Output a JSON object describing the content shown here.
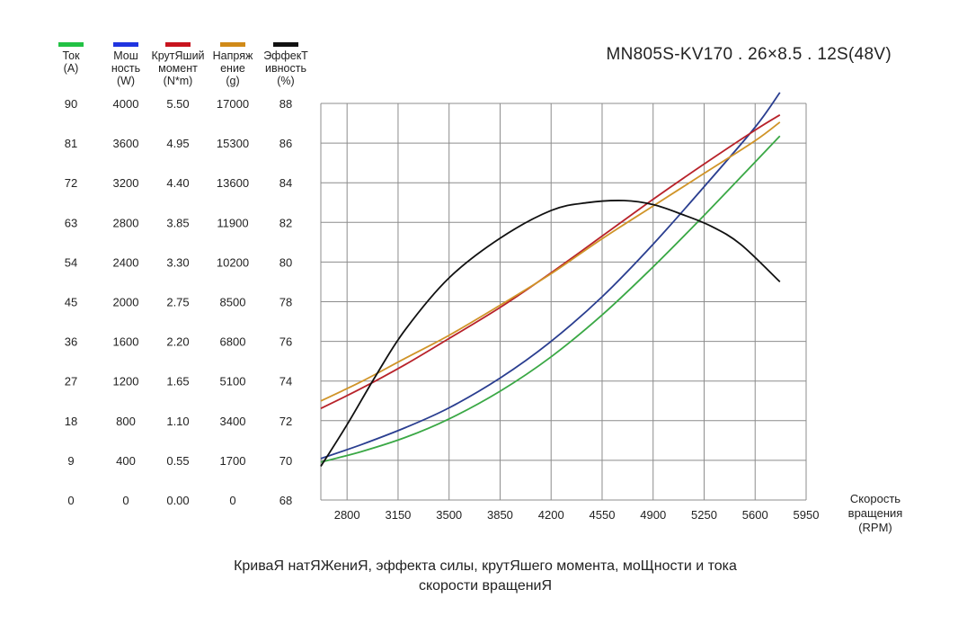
{
  "chart_data": {
    "type": "line",
    "title": "MN805S-KV170 . 26×8.5 . 12S(48V)",
    "caption_lines": [
      "КриваЯ натЯЖениЯ, эффекта силы, крутЯшего момента, моЩности и тока",
      "скорости вращениЯ"
    ],
    "xlabel_lines": [
      "Скорость",
      "вращения",
      "(RPM)"
    ],
    "x_ticks": [
      "2800",
      "3150",
      "3500",
      "3850",
      "4200",
      "4550",
      "4900",
      "5250",
      "5600",
      "5950"
    ],
    "xlim": [
      2620,
      5950
    ],
    "grid": true,
    "axes": [
      {
        "key": "current",
        "name_lines": [
          "Ток",
          "(А)"
        ],
        "color": "#22c244",
        "ticks": [
          "0",
          "9",
          "18",
          "27",
          "36",
          "45",
          "54",
          "63",
          "72",
          "81",
          "90"
        ],
        "ylim": [
          0,
          90
        ]
      },
      {
        "key": "power",
        "name_lines": [
          "Мош",
          "ность",
          "(W)"
        ],
        "color": "#2034e0",
        "ticks": [
          "0",
          "400",
          "800",
          "1200",
          "1600",
          "2000",
          "2400",
          "2800",
          "3200",
          "3600",
          "4000"
        ],
        "ylim": [
          0,
          4000
        ]
      },
      {
        "key": "torque",
        "name_lines": [
          "КрутЯший",
          "момент",
          "(N*m)"
        ],
        "color": "#c8141e",
        "ticks": [
          "0.00",
          "0.55",
          "1.10",
          "1.65",
          "2.20",
          "2.75",
          "3.30",
          "3.85",
          "4.40",
          "4.95",
          "5.50"
        ],
        "ylim": [
          0,
          5.5
        ]
      },
      {
        "key": "thrust",
        "name_lines": [
          "Напряж",
          "ение",
          "(g)"
        ],
        "color": "#d08a18",
        "ticks": [
          "0",
          "1700",
          "3400",
          "5100",
          "6800",
          "8500",
          "10200",
          "11900",
          "13600",
          "15300",
          "17000"
        ],
        "ylim": [
          0,
          17000
        ]
      },
      {
        "key": "efficiency",
        "name_lines": [
          "ЭффекТ",
          "ивность",
          "(%)"
        ],
        "color": "#111111",
        "ticks": [
          "68",
          "70",
          "72",
          "74",
          "76",
          "78",
          "80",
          "82",
          "84",
          "86",
          "88"
        ],
        "ylim": [
          68,
          88
        ]
      }
    ],
    "series": [
      {
        "key": "current",
        "axis": "current",
        "color": "#3aa845",
        "points": [
          [
            2620,
            8.6
          ],
          [
            2900,
            11.0
          ],
          [
            3200,
            14.2
          ],
          [
            3500,
            18.4
          ],
          [
            3850,
            24.7
          ],
          [
            4200,
            32.5
          ],
          [
            4550,
            42.0
          ],
          [
            4900,
            52.9
          ],
          [
            5250,
            64.6
          ],
          [
            5600,
            76.7
          ],
          [
            5770,
            82.6
          ]
        ]
      },
      {
        "key": "power",
        "axis": "power",
        "color": "#2a3e90",
        "points": [
          [
            2620,
            418
          ],
          [
            2900,
            560
          ],
          [
            3200,
            730
          ],
          [
            3500,
            930
          ],
          [
            3850,
            1230
          ],
          [
            4200,
            1600
          ],
          [
            4550,
            2050
          ],
          [
            4900,
            2580
          ],
          [
            5250,
            3160
          ],
          [
            5600,
            3760
          ],
          [
            5770,
            4110
          ]
        ]
      },
      {
        "key": "torque",
        "axis": "torque",
        "color": "#b8222a",
        "points": [
          [
            2620,
            1.27
          ],
          [
            2900,
            1.55
          ],
          [
            3200,
            1.88
          ],
          [
            3500,
            2.24
          ],
          [
            3850,
            2.67
          ],
          [
            4200,
            3.15
          ],
          [
            4550,
            3.66
          ],
          [
            4900,
            4.17
          ],
          [
            5250,
            4.66
          ],
          [
            5600,
            5.13
          ],
          [
            5770,
            5.34
          ]
        ]
      },
      {
        "key": "thrust",
        "axis": "thrust",
        "color": "#d09428",
        "points": [
          [
            2620,
            4250
          ],
          [
            2900,
            5080
          ],
          [
            3200,
            6080
          ],
          [
            3500,
            7060
          ],
          [
            3850,
            8350
          ],
          [
            4200,
            9700
          ],
          [
            4550,
            11200
          ],
          [
            4900,
            12600
          ],
          [
            5250,
            14000
          ],
          [
            5600,
            15400
          ],
          [
            5770,
            16200
          ]
        ]
      },
      {
        "key": "efficiency",
        "axis": "efficiency",
        "color": "#111111",
        "points": [
          [
            2620,
            69.7
          ],
          [
            2800,
            71.8
          ],
          [
            3000,
            74.3
          ],
          [
            3200,
            76.6
          ],
          [
            3500,
            79.2
          ],
          [
            3850,
            81.2
          ],
          [
            4200,
            82.6
          ],
          [
            4450,
            83.0
          ],
          [
            4700,
            83.1
          ],
          [
            4900,
            82.9
          ],
          [
            5100,
            82.4
          ],
          [
            5300,
            81.8
          ],
          [
            5500,
            80.9
          ],
          [
            5770,
            79.0
          ]
        ]
      }
    ]
  }
}
